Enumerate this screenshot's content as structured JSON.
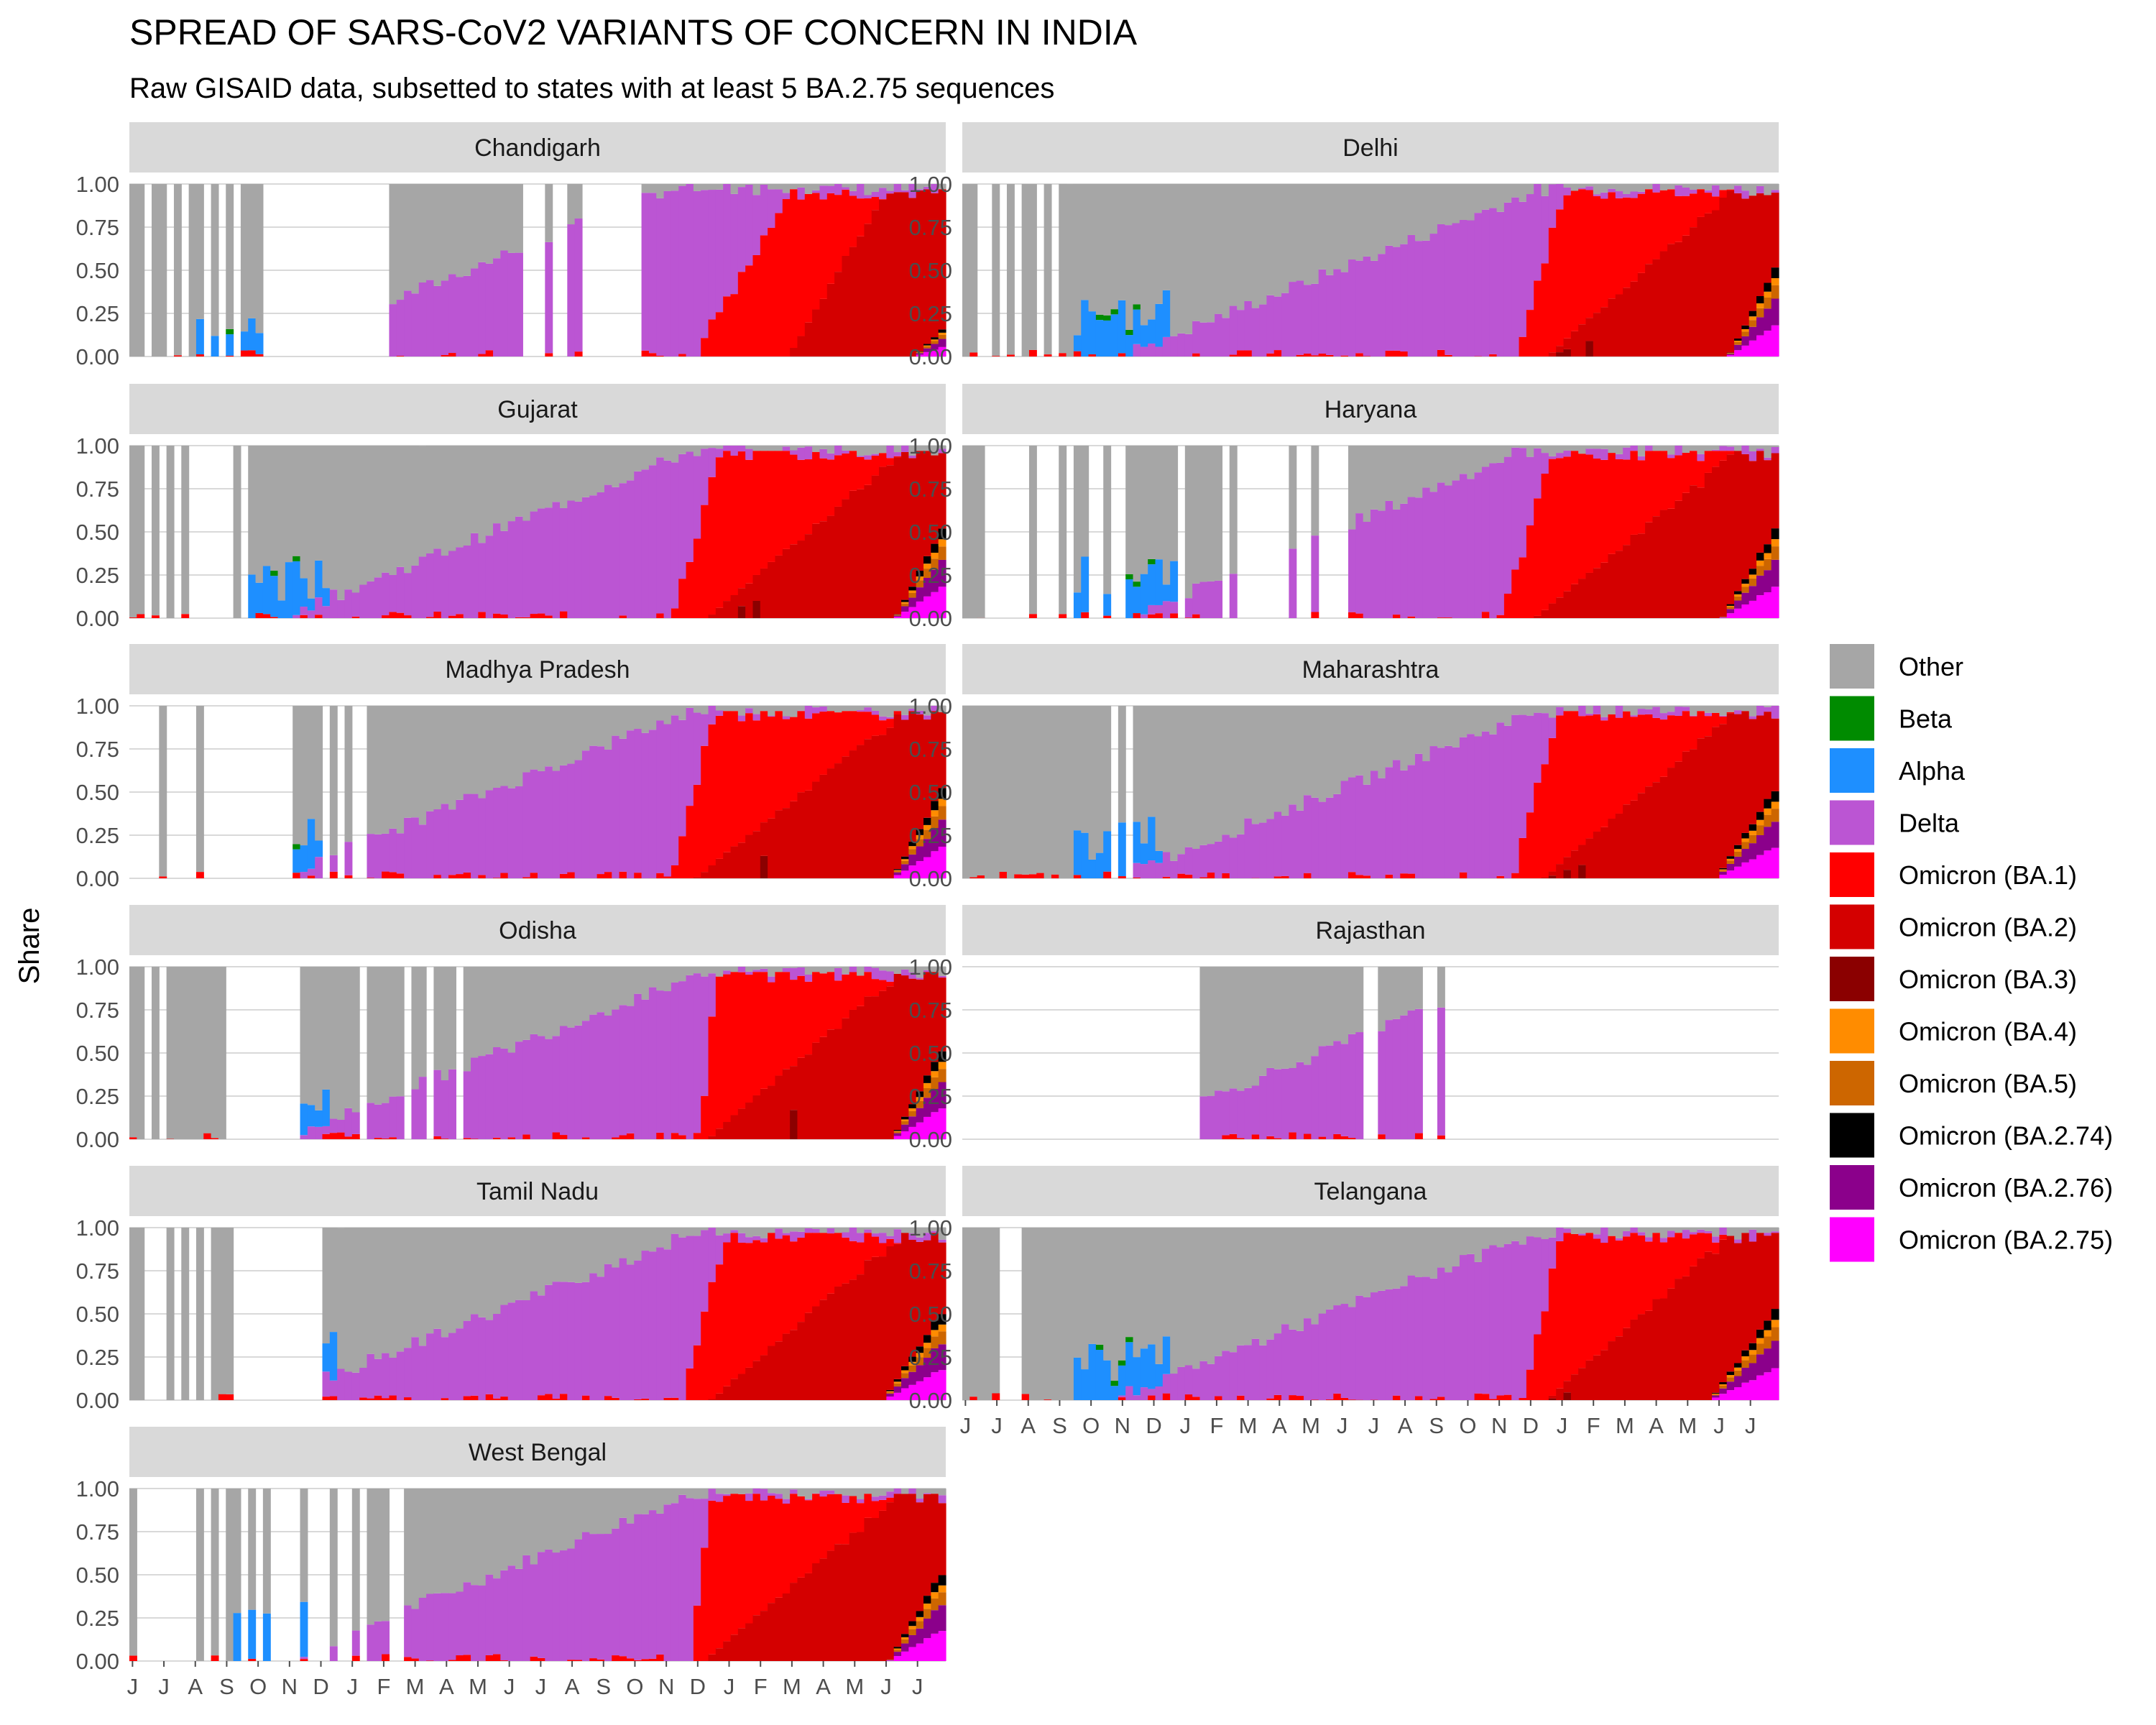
{
  "chart_data": {
    "type": "bar",
    "stacked": true,
    "faceted": true,
    "title": "SPREAD OF SARS-CoV2 VARIANTS OF CONCERN IN INDIA",
    "subtitle": "Raw GISAID data, subsetted to states with at least 5 BA.2.75 sequences",
    "ylabel": "Share",
    "xlabel": "",
    "ylim": [
      0,
      1
    ],
    "y_ticks": [
      "0.00",
      "0.25",
      "0.50",
      "0.75",
      "1.00"
    ],
    "x_ticks": [
      "J",
      "J",
      "A",
      "S",
      "O",
      "N",
      "D",
      "J",
      "F",
      "M",
      "A",
      "M",
      "J",
      "J",
      "A",
      "S",
      "O",
      "N",
      "D",
      "J",
      "F",
      "M",
      "A",
      "M",
      "J",
      "J"
    ],
    "grid": true,
    "legend_position": "right",
    "series": [
      {
        "name": "Other",
        "color": "#a6a6a6"
      },
      {
        "name": "Beta",
        "color": "#008b00"
      },
      {
        "name": "Alpha",
        "color": "#1e8fff"
      },
      {
        "name": "Delta",
        "color": "#bb55d3"
      },
      {
        "name": "Omicron (BA.1)",
        "color": "#ff0000"
      },
      {
        "name": "Omicron (BA.2)",
        "color": "#d40000"
      },
      {
        "name": "Omicron (BA.3)",
        "color": "#8b0000"
      },
      {
        "name": "Omicron (BA.4)",
        "color": "#ff8c00"
      },
      {
        "name": "Omicron (BA.5)",
        "color": "#cd6600"
      },
      {
        "name": "Omicron (BA.2.74)",
        "color": "#000000"
      },
      {
        "name": "Omicron (BA.2.76)",
        "color": "#8b008b"
      },
      {
        "name": "Omicron (BA.2.75)",
        "color": "#ff00ff"
      }
    ],
    "facets": [
      {
        "name": "Chandigarh",
        "gaps": [
          2,
          5,
          7,
          10,
          12,
          14,
          18,
          19,
          20,
          21,
          22,
          23,
          24,
          25,
          26,
          27,
          28,
          29,
          30,
          31,
          32,
          33,
          34,
          53,
          54,
          55,
          57,
          58,
          61,
          62,
          63,
          64,
          65,
          66,
          67,
          68
        ],
        "alpha": [
          2.2,
          3.8
        ],
        "delta": [
          4,
          17.1
        ],
        "ba1": [
          18,
          21
        ],
        "ba2": [
          21,
          24
        ],
        "late": [
          25,
          28
        ]
      },
      {
        "name": "Delhi",
        "gaps": [
          2,
          3,
          5,
          7,
          10,
          12
        ],
        "alpha": [
          3.5,
          5.1
        ],
        "delta": [
          5,
          18.4
        ],
        "ba1": [
          17.6,
          19.2
        ],
        "ba2": [
          18.6,
          24.5
        ],
        "late": [
          24.4,
          25.9
        ]
      },
      {
        "name": "Gujarat",
        "gaps": [
          2,
          4,
          6,
          8,
          9,
          10,
          11,
          12,
          13,
          15
        ],
        "alpha": [
          3.5,
          5
        ],
        "delta": [
          4.8,
          17.9
        ],
        "ba1": [
          17.3,
          18.8
        ],
        "ba2": [
          18.4,
          24.5
        ],
        "late": [
          24.4,
          25.9
        ]
      },
      {
        "name": "Haryana",
        "gaps": [
          3,
          4,
          5,
          6,
          7,
          8,
          10,
          11,
          12,
          14,
          17,
          18,
          20,
          21,
          29,
          35,
          37,
          38,
          39,
          40,
          41,
          42,
          43,
          45,
          46,
          48,
          49,
          50,
          51
        ],
        "alpha": [
          3.4,
          5.6
        ],
        "delta": [
          5.3,
          17.8
        ],
        "ba1": [
          17.2,
          18.8
        ],
        "ba2": [
          18.2,
          24.6
        ],
        "late": [
          24.2,
          25.9
        ]
      },
      {
        "name": "Madhya Pradesh",
        "gaps": [
          0,
          1,
          2,
          3,
          5,
          6,
          7,
          8,
          10,
          11,
          12,
          13,
          14,
          15,
          16,
          17,
          18,
          19,
          20,
          21,
          26,
          28,
          30,
          31
        ],
        "alpha": [
          3.5,
          4.8
        ],
        "delta": [
          4.5,
          17.9
        ],
        "ba1": [
          17.3,
          18.6
        ],
        "ba2": [
          18,
          24.6
        ],
        "late": [
          24.3,
          25.9
        ]
      },
      {
        "name": "Maharashtra",
        "gaps": [
          20,
          22
        ],
        "alpha": [
          3.6,
          5
        ],
        "delta": [
          4.8,
          18.3
        ],
        "ba1": [
          17.5,
          19
        ],
        "ba2": [
          18.5,
          24.5
        ],
        "late": [
          24,
          25.9
        ]
      },
      {
        "name": "Odisha",
        "gaps": [
          2,
          4,
          13,
          14,
          15,
          16,
          17,
          18,
          19,
          20,
          21,
          22,
          31,
          37,
          40,
          44
        ],
        "alpha": [
          3.6,
          5
        ],
        "delta": [
          4.8,
          18.2
        ],
        "ba1": [
          18.2,
          18.7
        ],
        "ba2": [
          18.4,
          24.4
        ],
        "late": [
          24.3,
          25.9
        ]
      },
      {
        "name": "Rajasthan",
        "gaps": [
          0,
          1,
          2,
          3,
          4,
          5,
          6,
          7,
          8,
          9,
          10,
          11,
          12,
          13,
          14,
          15,
          16,
          17,
          18,
          19,
          20,
          21,
          22,
          23,
          24,
          25,
          26,
          27,
          28,
          29,
          30,
          31,
          54,
          55,
          62,
          63,
          65,
          66,
          67,
          68,
          69,
          70,
          71,
          72,
          73,
          74,
          75,
          76,
          77,
          78,
          79,
          80,
          81,
          82,
          83,
          84,
          85,
          86,
          87,
          88,
          89,
          90,
          91,
          92,
          93,
          94,
          95,
          96,
          97,
          98,
          99,
          100,
          101,
          102,
          103,
          104,
          105,
          106,
          107,
          108,
          109
        ],
        "alpha": [
          3.4,
          4.9
        ],
        "delta": [
          4.6,
          17.8
        ],
        "ba1": [
          17.3,
          18.6
        ],
        "ba2": [
          18.2,
          25
        ],
        "late": [
          24.5,
          25.9
        ]
      },
      {
        "name": "Tamil Nadu",
        "gaps": [
          2,
          3,
          4,
          6,
          8,
          10,
          14,
          15,
          16,
          17,
          18,
          19,
          20,
          21,
          22,
          23,
          24,
          25
        ],
        "alpha": [
          3.5,
          5.1
        ],
        "delta": [
          4.5,
          18
        ],
        "ba1": [
          17.6,
          19
        ],
        "ba2": [
          18.5,
          24.5
        ],
        "late": [
          24,
          25.9
        ]
      },
      {
        "name": "Telangana",
        "gaps": [
          5,
          6,
          7
        ],
        "alpha": [
          3.5,
          5.1
        ],
        "delta": [
          4.6,
          18.3
        ],
        "ba1": [
          17.8,
          19.1
        ],
        "ba2": [
          18.6,
          24.4
        ],
        "late": [
          23.8,
          25.9
        ]
      },
      {
        "name": "West Bengal",
        "gaps": [
          1,
          2,
          3,
          4,
          5,
          6,
          7,
          8,
          10,
          12,
          15,
          17,
          19,
          20,
          21,
          22,
          24,
          25,
          26,
          28,
          29,
          31,
          35,
          36
        ],
        "alpha": [
          3.4,
          5
        ],
        "delta": [
          4.8,
          18
        ],
        "ba1": [
          17.9,
          18.5
        ],
        "ba2": [
          18.3,
          24.4
        ],
        "late": [
          24.2,
          25.9
        ]
      }
    ]
  }
}
